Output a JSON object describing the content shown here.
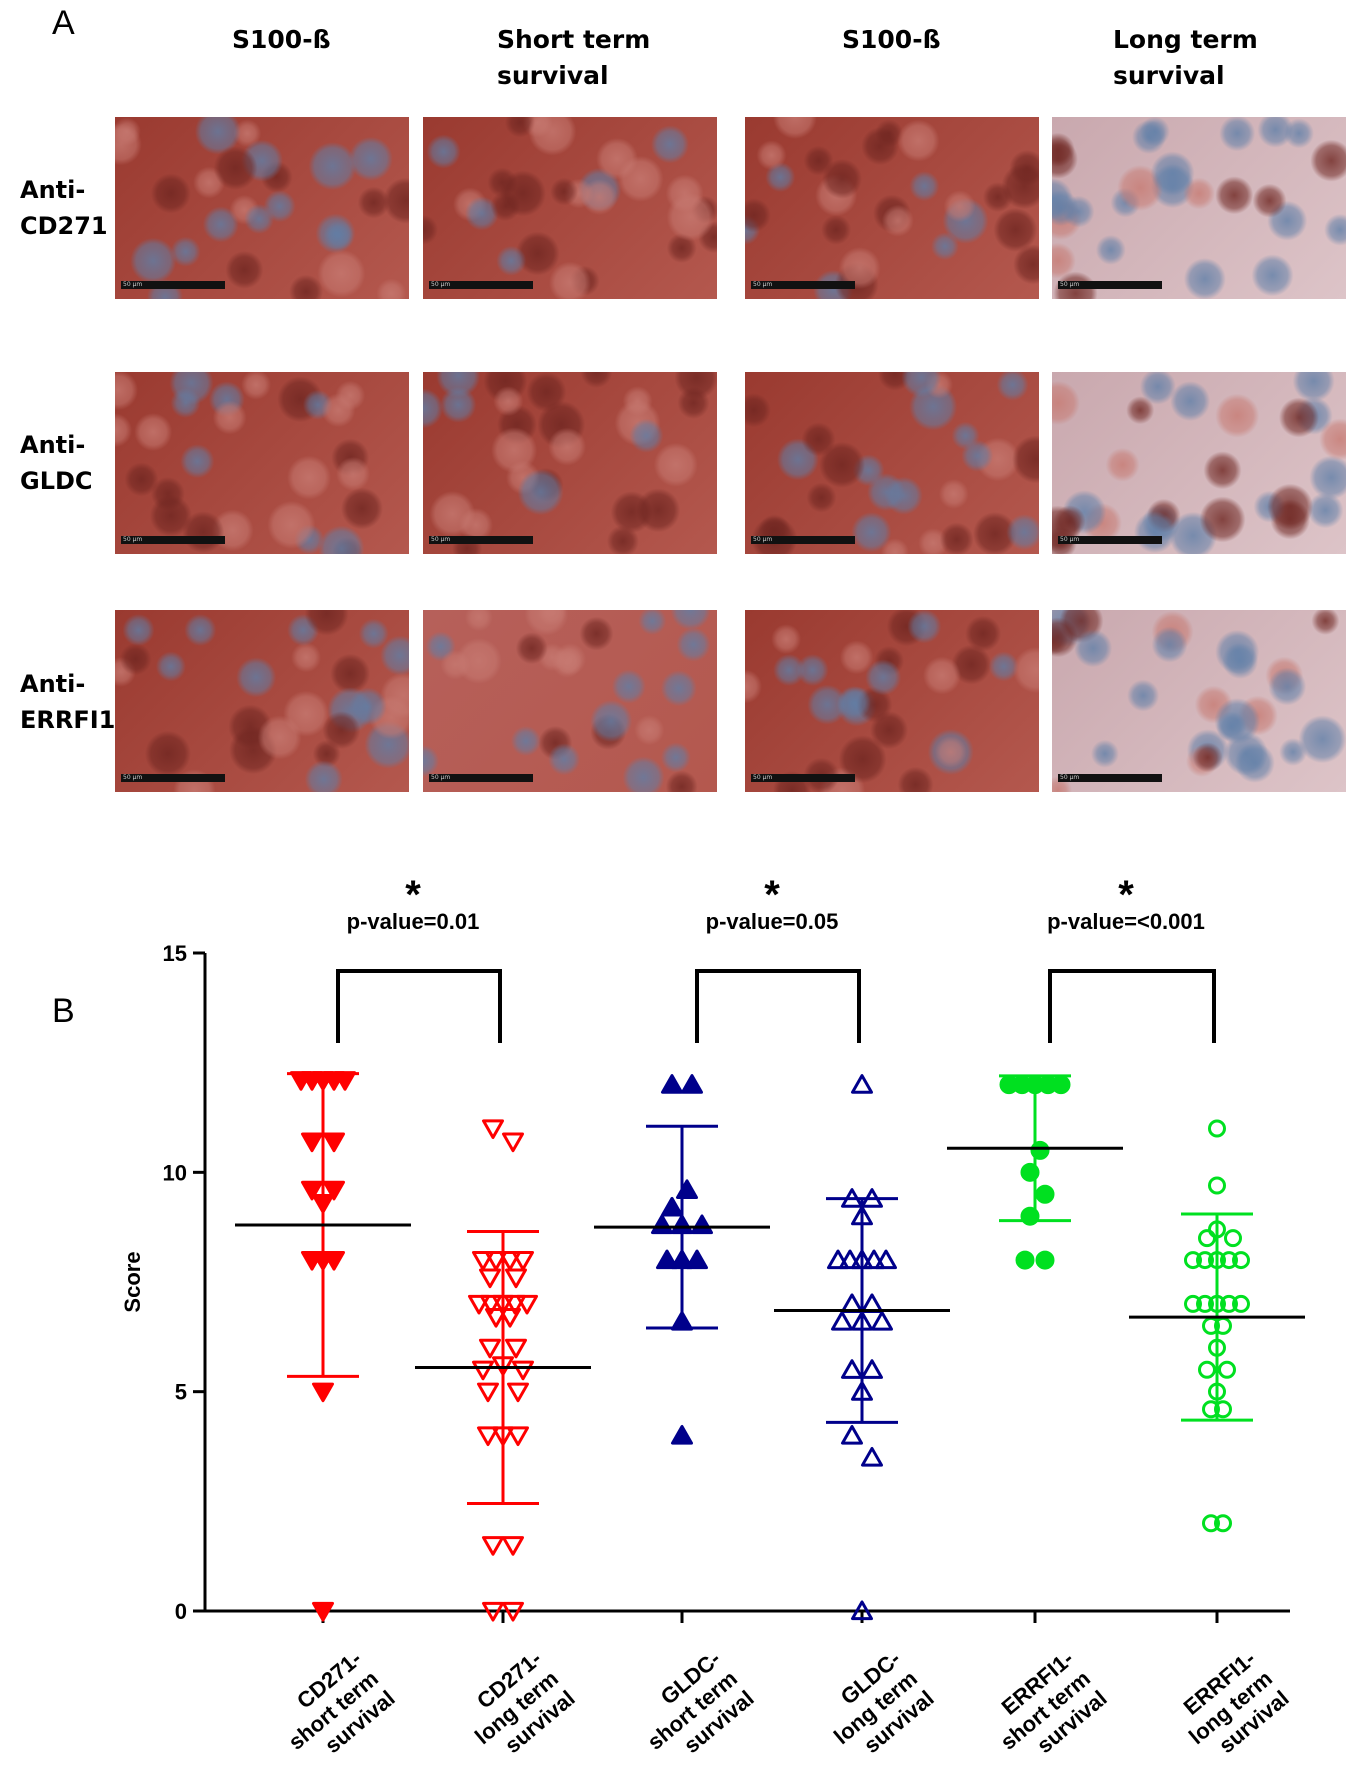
{
  "panel_a": {
    "letter": "A",
    "columns": [
      {
        "line1": "S100-ß",
        "line2": ""
      },
      {
        "line1": "Short term",
        "line2": "survival"
      },
      {
        "line1": "S100-ß",
        "line2": ""
      },
      {
        "line1": "Long term",
        "line2": "survival"
      }
    ],
    "rows": [
      {
        "line1": "Anti-",
        "line2": "CD271"
      },
      {
        "line1": "Anti-",
        "line2": "GLDC"
      },
      {
        "line1": "Anti-",
        "line2": "ERRFI1"
      }
    ],
    "scale_bar_text": "50 µm",
    "stain_colors": {
      "strong": "#9a3a30",
      "medium": "#b6605a",
      "weak": "#c9a8ae",
      "nuclei": "#5f7fa8"
    },
    "staining_levels": [
      [
        "strong",
        "strong",
        "strong",
        "weak"
      ],
      [
        "strong",
        "strong",
        "strong",
        "weak"
      ],
      [
        "strong",
        "medium",
        "strong",
        "weak"
      ]
    ]
  },
  "chart_data": {
    "type": "scatter",
    "panel_letter": "B",
    "ylabel": "Score",
    "ylim": [
      0,
      15
    ],
    "yticks": [
      "0",
      "5",
      "10",
      "15"
    ],
    "categories": [
      [
        "CD271-",
        "short term",
        "survival"
      ],
      [
        "CD271-",
        "long term",
        "survival"
      ],
      [
        "GLDC-",
        "short term",
        "survival"
      ],
      [
        "GLDC-",
        "long term",
        "survival"
      ],
      [
        "ERRFI1-",
        "short term",
        "survival"
      ],
      [
        "ERRFI1-",
        "long term",
        "survival"
      ]
    ],
    "series": [
      {
        "marker": "triangle-down",
        "filled": true,
        "color": "#ff0000",
        "mean": 8.8,
        "sd_low": 5.35,
        "sd_high": 12.25,
        "points": [
          [
            -0.22,
            12.1
          ],
          [
            -0.11,
            12.1
          ],
          [
            0.0,
            12.1
          ],
          [
            0.11,
            12.1
          ],
          [
            0.22,
            12.1
          ],
          [
            -0.11,
            10.7
          ],
          [
            0.11,
            10.7
          ],
          [
            -0.11,
            9.6
          ],
          [
            0.11,
            9.6
          ],
          [
            0.0,
            9.3
          ],
          [
            -0.11,
            8.0
          ],
          [
            0.0,
            8.0
          ],
          [
            0.11,
            8.0
          ],
          [
            0.0,
            5.0
          ],
          [
            0.0,
            0.0
          ]
        ]
      },
      {
        "marker": "triangle-down",
        "filled": false,
        "color": "#ff0000",
        "mean": 5.55,
        "sd_low": 2.45,
        "sd_high": 8.65,
        "points": [
          [
            -0.1,
            11.0
          ],
          [
            0.1,
            10.7
          ],
          [
            -0.2,
            8.0
          ],
          [
            -0.07,
            8.0
          ],
          [
            0.07,
            8.0
          ],
          [
            0.2,
            8.0
          ],
          [
            -0.13,
            7.6
          ],
          [
            0.13,
            7.6
          ],
          [
            -0.24,
            7.0
          ],
          [
            -0.12,
            7.0
          ],
          [
            0.0,
            7.0
          ],
          [
            0.12,
            7.0
          ],
          [
            0.24,
            7.0
          ],
          [
            -0.07,
            6.7
          ],
          [
            0.07,
            6.7
          ],
          [
            -0.13,
            6.0
          ],
          [
            0.13,
            6.0
          ],
          [
            0.0,
            5.6
          ],
          [
            -0.2,
            5.5
          ],
          [
            0.2,
            5.5
          ],
          [
            -0.15,
            5.0
          ],
          [
            0.15,
            5.0
          ],
          [
            -0.15,
            4.0
          ],
          [
            0.0,
            4.0
          ],
          [
            0.15,
            4.0
          ],
          [
            -0.1,
            1.5
          ],
          [
            0.1,
            1.5
          ],
          [
            -0.1,
            0.0
          ],
          [
            0.1,
            0.0
          ]
        ]
      },
      {
        "marker": "triangle-up",
        "filled": true,
        "color": "#00008b",
        "mean": 8.75,
        "sd_low": 6.45,
        "sd_high": 11.05,
        "points": [
          [
            -0.1,
            12.0
          ],
          [
            0.1,
            12.0
          ],
          [
            0.05,
            9.6
          ],
          [
            -0.1,
            9.2
          ],
          [
            -0.2,
            8.8
          ],
          [
            0.0,
            8.8
          ],
          [
            0.2,
            8.8
          ],
          [
            -0.15,
            8.0
          ],
          [
            0.0,
            8.0
          ],
          [
            0.15,
            8.0
          ],
          [
            0.0,
            6.6
          ],
          [
            0.0,
            4.0
          ]
        ]
      },
      {
        "marker": "triangle-up",
        "filled": false,
        "color": "#00008b",
        "mean": 6.85,
        "sd_low": 4.3,
        "sd_high": 9.4,
        "points": [
          [
            0.0,
            12.0
          ],
          [
            -0.1,
            9.4
          ],
          [
            0.1,
            9.4
          ],
          [
            0.0,
            9.0
          ],
          [
            -0.24,
            8.0
          ],
          [
            -0.12,
            8.0
          ],
          [
            0.0,
            8.0
          ],
          [
            0.12,
            8.0
          ],
          [
            0.24,
            8.0
          ],
          [
            -0.1,
            7.0
          ],
          [
            0.1,
            7.0
          ],
          [
            -0.2,
            6.6
          ],
          [
            0.0,
            6.6
          ],
          [
            0.2,
            6.6
          ],
          [
            -0.1,
            5.5
          ],
          [
            0.1,
            5.5
          ],
          [
            0.0,
            5.0
          ],
          [
            -0.1,
            4.0
          ],
          [
            0.1,
            3.5
          ],
          [
            0.0,
            0.0
          ]
        ]
      },
      {
        "marker": "circle",
        "filled": true,
        "color": "#00e020",
        "mean": 10.55,
        "sd_low": 8.9,
        "sd_high": 12.2,
        "points": [
          [
            -0.26,
            12.0
          ],
          [
            -0.13,
            12.0
          ],
          [
            0.0,
            12.0
          ],
          [
            0.13,
            12.0
          ],
          [
            0.26,
            12.0
          ],
          [
            0.05,
            10.5
          ],
          [
            -0.05,
            10.0
          ],
          [
            0.1,
            9.5
          ],
          [
            -0.05,
            9.0
          ],
          [
            -0.1,
            8.0
          ],
          [
            0.1,
            8.0
          ]
        ]
      },
      {
        "marker": "circle",
        "filled": false,
        "color": "#00e020",
        "mean": 6.7,
        "sd_low": 4.35,
        "sd_high": 9.05,
        "points": [
          [
            0.0,
            11.0
          ],
          [
            0.0,
            9.7
          ],
          [
            0.0,
            8.7
          ],
          [
            -0.1,
            8.5
          ],
          [
            0.16,
            8.5
          ],
          [
            -0.24,
            8.0
          ],
          [
            -0.12,
            8.0
          ],
          [
            0.0,
            8.0
          ],
          [
            0.12,
            8.0
          ],
          [
            0.24,
            8.0
          ],
          [
            -0.24,
            7.0
          ],
          [
            -0.12,
            7.0
          ],
          [
            0.0,
            7.0
          ],
          [
            0.12,
            7.0
          ],
          [
            0.24,
            7.0
          ],
          [
            -0.06,
            6.5
          ],
          [
            0.06,
            6.5
          ],
          [
            0.0,
            6.0
          ],
          [
            -0.1,
            5.5
          ],
          [
            0.1,
            5.5
          ],
          [
            0.0,
            5.0
          ],
          [
            -0.06,
            4.6
          ],
          [
            0.06,
            4.6
          ],
          [
            -0.06,
            2.0
          ],
          [
            0.06,
            2.0
          ]
        ]
      }
    ],
    "comparisons": [
      {
        "from": 0,
        "to": 1,
        "star": "*",
        "pvalue": "p-value=0.01"
      },
      {
        "from": 2,
        "to": 3,
        "star": "*",
        "pvalue": "p-value=0.05"
      },
      {
        "from": 4,
        "to": 5,
        "star": "*",
        "pvalue": "p-value=<0.001"
      }
    ]
  }
}
